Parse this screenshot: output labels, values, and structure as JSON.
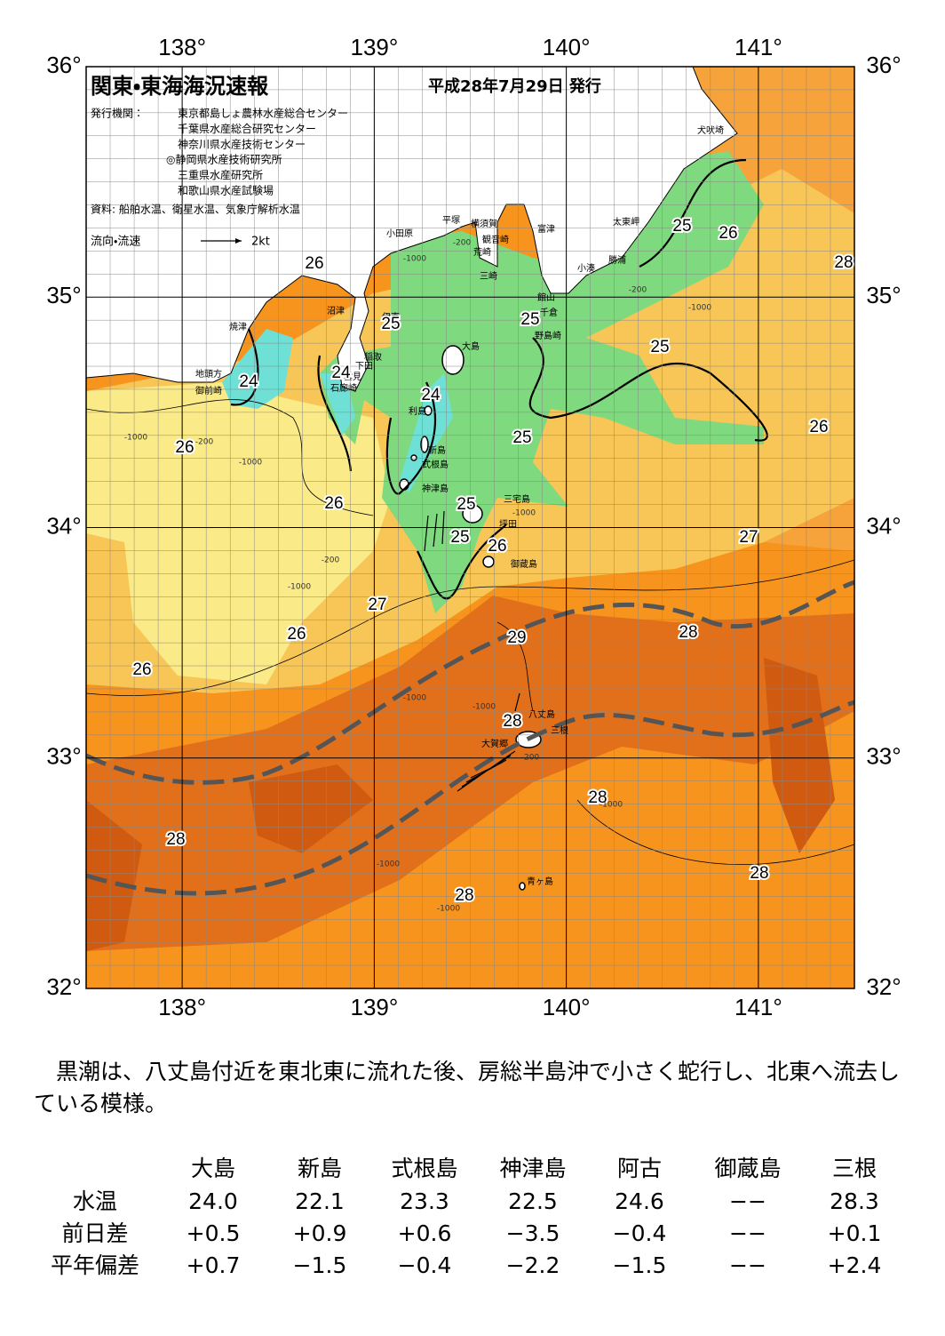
{
  "header": {
    "title": "関東・東海海況速報",
    "date": "平成28年7月29日 発行",
    "issuer_label": "発行機関：",
    "issuers": [
      "東京都島しょ農林水産総合センター",
      "千葉県水産総合研究センター",
      "神奈川県水産技術センター",
      "◎静岡県水産技術研究所",
      "三重県水産研究所",
      "和歌山県水産試験場"
    ],
    "source": "資料: 船舶水温、衛星水温、気象庁解析水温",
    "legend_label": "流向・流速",
    "legend_scale": "2kt"
  },
  "map": {
    "lon_ticks": [
      {
        "value": 138,
        "label": "138°"
      },
      {
        "value": 139,
        "label": "139°"
      },
      {
        "value": 140,
        "label": "140°"
      },
      {
        "value": 141,
        "label": "141°"
      }
    ],
    "lat_ticks": [
      {
        "value": 36,
        "label": "36°"
      },
      {
        "value": 35,
        "label": "35°"
      },
      {
        "value": 34,
        "label": "34°"
      },
      {
        "value": 33,
        "label": "33°"
      },
      {
        "value": 32,
        "label": "32°"
      }
    ],
    "places": [
      "犬吠埼",
      "太東岬",
      "勝浦",
      "小湊",
      "富津",
      "横須賀",
      "観音崎",
      "荒崎",
      "三崎",
      "館山",
      "千倉",
      "野島崎",
      "平塚",
      "小田原",
      "沼津",
      "伊東",
      "焼津",
      "稲取",
      "下田",
      "雲見",
      "石廊崎",
      "地頭方",
      "御前崎",
      "大島",
      "利島",
      "新島",
      "式根島",
      "神津島",
      "三宅島",
      "坪田",
      "御蔵島",
      "八丈島",
      "三根",
      "大賀郷",
      "青ヶ島"
    ],
    "isotherm_labels": [
      26,
      25,
      24,
      24,
      24,
      25,
      25,
      25,
      26,
      28,
      26,
      25,
      26,
      26,
      25,
      25,
      26,
      27,
      27,
      26,
      29,
      28,
      26,
      28,
      28,
      28,
      28,
      28
    ],
    "depth_labels": [
      "-200",
      "-1000",
      "-200",
      "-1000",
      "-1000",
      "-200",
      "-1000",
      "-1000",
      "-200",
      "-1000",
      "-1000",
      "-1000",
      "-200",
      "-1000",
      "-1000",
      "-1000"
    ]
  },
  "summary": "　黒潮は、八丈島付近を東北東に流れた後、房総半島沖で小さく蛇行し、北東へ流去している模様。",
  "table": {
    "columns": [
      "大島",
      "新島",
      "式根島",
      "神津島",
      "阿古",
      "御蔵島",
      "三根"
    ],
    "rows": [
      {
        "label": "水温",
        "values": [
          "24.0",
          "22.1",
          "23.3",
          "22.5",
          "24.6",
          "−−",
          "28.3"
        ]
      },
      {
        "label": "前日差",
        "values": [
          "+0.5",
          "+0.9",
          "+0.6",
          "−3.5",
          "−0.4",
          "−−",
          "+0.1"
        ]
      },
      {
        "label": "平年偏差",
        "values": [
          "+0.7",
          "−1.5",
          "−0.4",
          "−2.2",
          "−1.5",
          "−−",
          "+2.4"
        ]
      }
    ]
  }
}
